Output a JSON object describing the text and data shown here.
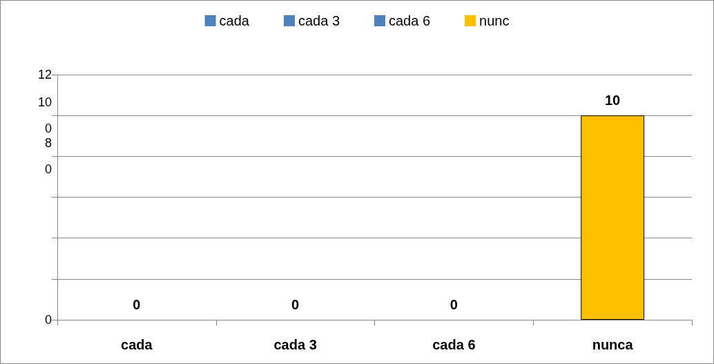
{
  "chart_data": {
    "type": "bar",
    "categories": [
      "cada",
      "cada 3",
      "cada 6",
      "nunca"
    ],
    "series": [
      {
        "name": "cada",
        "color": "#4f81bd",
        "values": [
          0,
          null,
          null,
          null
        ],
        "value_labels": [
          "0",
          null,
          null,
          null
        ]
      },
      {
        "name": "cada 3",
        "color": "#4f81bd",
        "values": [
          null,
          0,
          null,
          null
        ],
        "value_labels": [
          null,
          "0",
          null,
          null
        ]
      },
      {
        "name": "cada 6",
        "color": "#4f81bd",
        "values": [
          null,
          null,
          0,
          null
        ],
        "value_labels": [
          null,
          null,
          "0",
          null
        ]
      },
      {
        "name": "nunc",
        "color": "#ffc000",
        "values": [
          null,
          null,
          null,
          10
        ],
        "value_labels": [
          null,
          null,
          null,
          "10"
        ]
      }
    ],
    "stacked": true,
    "ylim": [
      0,
      12
    ],
    "yticks": [
      0,
      {
        "value": 8,
        "label": "8\n0"
      },
      {
        "value": 10,
        "label": "10\n0"
      },
      12
    ],
    "grid": "y",
    "legend": "top"
  }
}
